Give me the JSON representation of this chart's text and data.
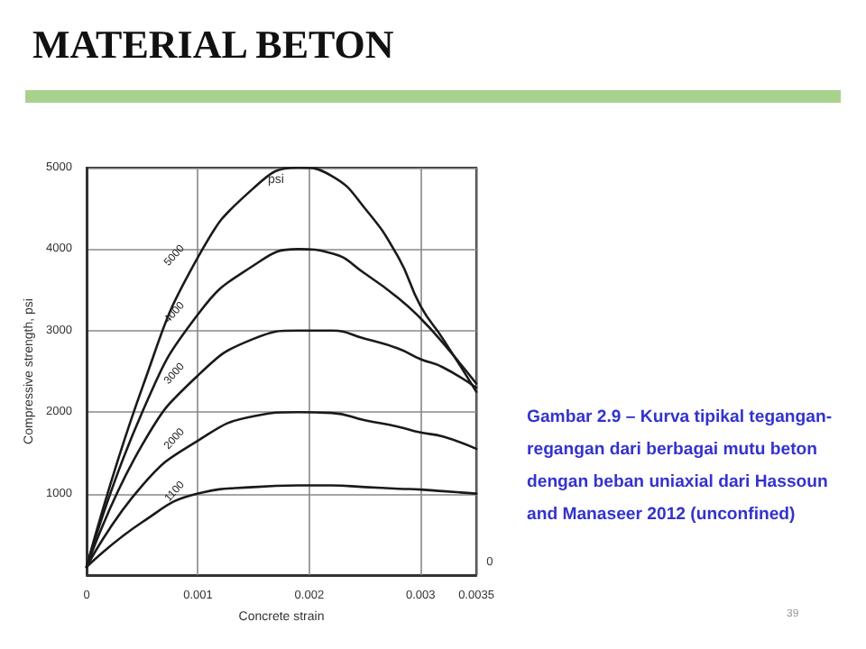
{
  "chart_data": {
    "type": "line",
    "title": "MATERIAL BETON",
    "xlabel": "Concrete strain",
    "ylabel": "Compressive strength, psi",
    "xlim": [
      0,
      0.0035
    ],
    "xticks": [
      0,
      0.001,
      0.002,
      0.003,
      0.0035
    ],
    "ylim": [
      0,
      5000
    ],
    "yticks": [
      1000,
      2000,
      3000,
      4000,
      5000
    ],
    "grid": true,
    "marker": "none",
    "line_style": "solid",
    "x": [
      0,
      0.0005,
      0.001,
      0.0015,
      0.0019,
      0.0022,
      0.0025,
      0.0028,
      0.003,
      0.0032,
      0.0035
    ],
    "series": [
      {
        "name": "5000",
        "color": "#1a1a1a",
        "values": [
          100,
          2300,
          3900,
          4750,
          5000,
          4900,
          4500,
          3900,
          3300,
          2900,
          2250
        ]
      },
      {
        "name": "4000",
        "color": "#1a1a1a",
        "values": [
          100,
          2000,
          3200,
          3800,
          4000,
          3950,
          3700,
          3400,
          3150,
          2850,
          2350
        ]
      },
      {
        "name": "3000",
        "color": "#1a1a1a",
        "values": [
          100,
          1600,
          2450,
          2900,
          3000,
          3000,
          2900,
          2780,
          2650,
          2550,
          2300
        ]
      },
      {
        "name": "2000",
        "color": "#1a1a1a",
        "values": [
          100,
          1100,
          1650,
          1950,
          2000,
          1990,
          1900,
          1820,
          1750,
          1700,
          1550
        ]
      },
      {
        "name": "1100",
        "color": "#1a1a1a",
        "values": [
          100,
          650,
          1000,
          1080,
          1100,
          1100,
          1080,
          1060,
          1050,
          1030,
          1000
        ]
      }
    ],
    "annotations": [
      "psi",
      "0",
      "Gambar 2.9 – Kurva tipikal tegangan-regangan dari berbagai mutu beton dengan beban uniaxial dari Hassoun and Manaseer 2012 (unconfined)",
      "39"
    ]
  }
}
